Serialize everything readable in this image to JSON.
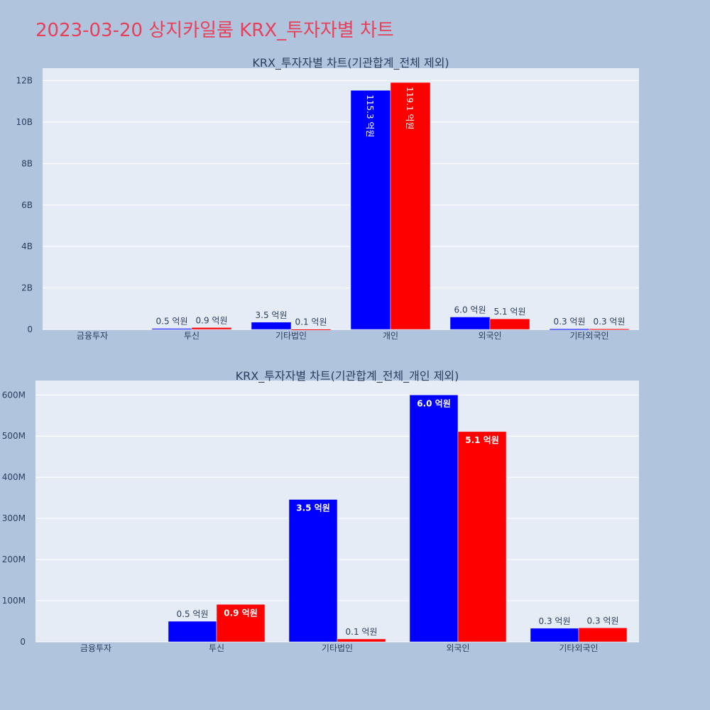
{
  "page_title": "2023-03-20 상지카일룸 KRX_투자자별 차트",
  "colors": {
    "series_a": "#0000ff",
    "series_b": "#ff0000",
    "plot_bg": "#e5ecf6",
    "page_bg": "#b0c4de",
    "title": "#e8405a"
  },
  "chart_data": [
    {
      "type": "bar",
      "title": "KRX_투자자별 차트(기관합계_전체 제외)",
      "categories": [
        "금융투자",
        "투신",
        "기타법인",
        "개인",
        "외국인",
        "기타외국인"
      ],
      "ylim": [
        0,
        12600000000
      ],
      "yticks": [
        0,
        2000000000,
        4000000000,
        6000000000,
        8000000000,
        10000000000,
        12000000000
      ],
      "ytick_labels": [
        "0",
        "2B",
        "4B",
        "6B",
        "8B",
        "10B",
        "12B"
      ],
      "grid": true,
      "series": [
        {
          "values": [
            0,
            50000000,
            350000000,
            11530000000,
            600000000,
            30000000
          ],
          "labels": [
            "",
            "0.5 억원",
            "3.5 억원",
            "115.3 억원",
            "6.0 억원",
            "0.3 억원"
          ]
        },
        {
          "values": [
            0,
            90000000,
            10000000,
            11910000000,
            510000000,
            30000000
          ],
          "labels": [
            "",
            "0.9 억원",
            "0.1 억원",
            "119.1 억원",
            "5.1 억원",
            "0.3 억원"
          ]
        }
      ]
    },
    {
      "type": "bar",
      "title": "KRX_투자자별 차트(기관합계_전체_개인 제외)",
      "categories": [
        "금융투자",
        "투신",
        "기타법인",
        "외국인",
        "기타외국인"
      ],
      "ylim": [
        0,
        635000000
      ],
      "yticks": [
        0,
        100000000,
        200000000,
        300000000,
        400000000,
        500000000,
        600000000
      ],
      "ytick_labels": [
        "0",
        "100M",
        "200M",
        "300M",
        "400M",
        "500M",
        "600M"
      ],
      "grid": true,
      "series": [
        {
          "values": [
            0,
            50000000,
            346000000,
            600000000,
            33000000
          ],
          "labels": [
            "",
            "0.5 억원",
            "3.5 억원",
            "6.0 억원",
            "0.3 억원"
          ]
        },
        {
          "values": [
            0,
            91000000,
            7000000,
            511000000,
            34000000
          ],
          "labels": [
            "",
            "0.9 억원",
            "0.1 억원",
            "5.1 억원",
            "0.3 억원"
          ]
        }
      ]
    }
  ]
}
